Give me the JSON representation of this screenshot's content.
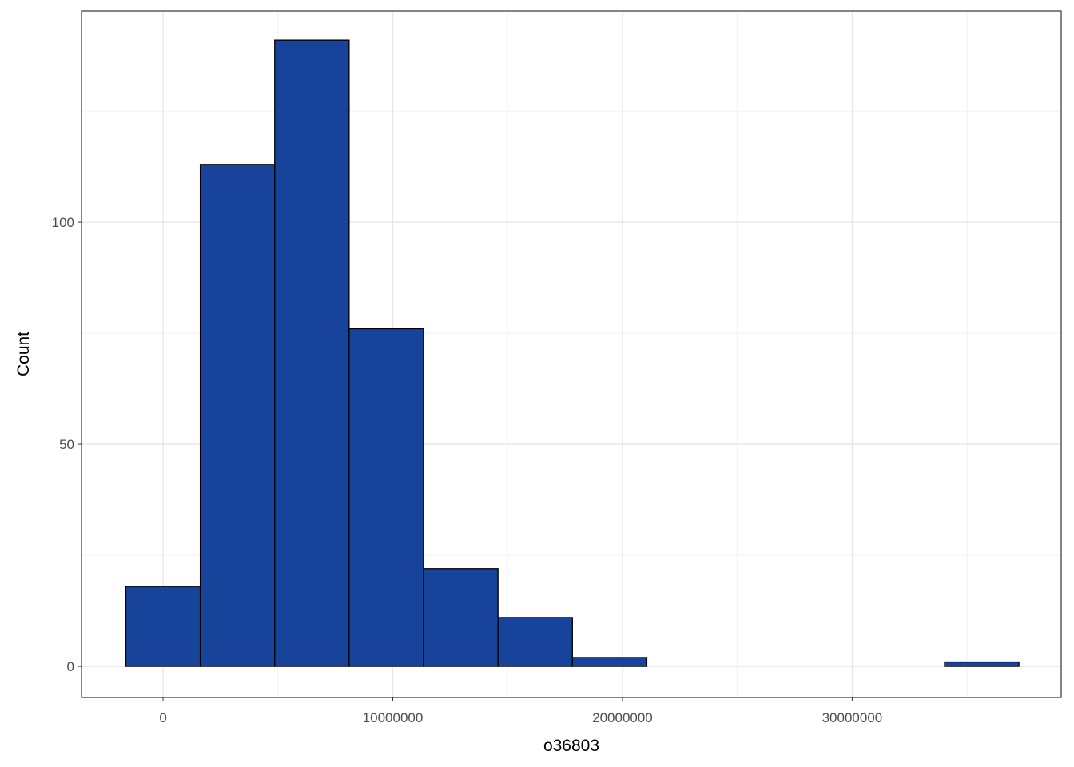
{
  "chart_data": {
    "type": "histogram",
    "x_label": "o36803",
    "y_label": "Count",
    "bins": [
      -1620000,
      1620000,
      4860000,
      8100000,
      11340000,
      14580000,
      17820000,
      21060000,
      24300000,
      27540000,
      30780000,
      34020000,
      37260000
    ],
    "values": [
      18,
      113,
      141,
      76,
      22,
      11,
      2,
      0,
      0,
      0,
      0,
      1
    ],
    "color": "#18439a",
    "edge_color": "#000000",
    "xlim": [
      -3550000,
      39100000
    ],
    "ylim": [
      -7,
      147.5
    ],
    "xticks": [
      0,
      10000000,
      20000000,
      30000000
    ],
    "yticks": [
      0,
      50,
      100
    ],
    "x_minor_ticks": [
      5000000,
      15000000,
      25000000,
      35000000
    ],
    "y_minor_ticks": [
      25,
      75,
      125
    ],
    "grid": true
  }
}
